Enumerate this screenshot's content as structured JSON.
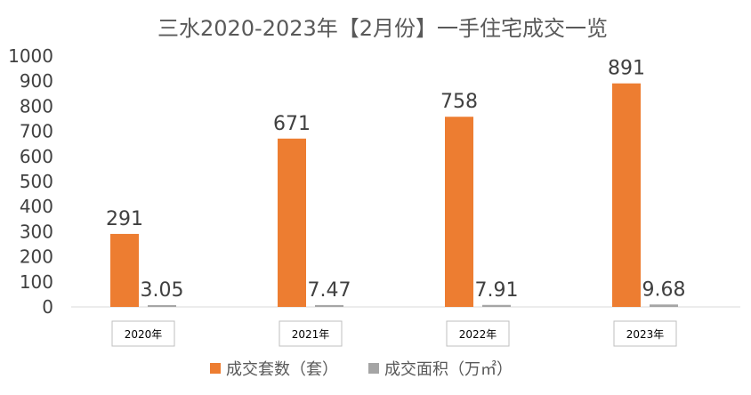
{
  "chart_data": {
    "type": "bar",
    "title": "三水2020-2023年【2月份】一手住宅成交一览",
    "categories": [
      "2020年",
      "2021年",
      "2022年",
      "2023年"
    ],
    "series": [
      {
        "name": "成交套数（套）",
        "values": [
          291,
          671,
          758,
          891
        ],
        "labels": [
          "291",
          "671",
          "758",
          "891"
        ],
        "color": "#ED7D31"
      },
      {
        "name": "成交面积（万㎡）",
        "values": [
          3.05,
          7.47,
          7.91,
          9.68
        ],
        "labels": [
          "3.05",
          "7.47",
          "7.91",
          "9.68"
        ],
        "color": "#A5A5A5"
      }
    ],
    "ylim": [
      0,
      1000
    ],
    "yticks": [
      "0",
      "100",
      "200",
      "300",
      "400",
      "500",
      "600",
      "700",
      "800",
      "900",
      "1000"
    ],
    "grid": false,
    "legend_position": "bottom"
  }
}
